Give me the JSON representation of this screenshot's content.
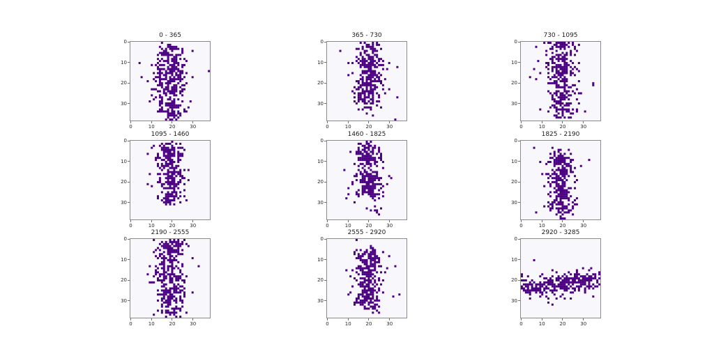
{
  "figure": {
    "background": "#ffffff",
    "axes_background": "#f8f7fb",
    "spine_color": "#8a8a8a",
    "point_color": "#4b0082",
    "tick_color": "#262626",
    "title_color": "#1a1a1a"
  },
  "chart_data": {
    "type": "heatmap",
    "layout": "3x3 grid of binned scatter subplots (matplotlib style)",
    "title": "",
    "xlabel": "",
    "ylabel": "",
    "xlim": [
      -0.5,
      38.5
    ],
    "ylim": [
      38.5,
      -0.5
    ],
    "y_axis_inverted": true,
    "xticks": [
      0,
      10,
      20,
      30
    ],
    "yticks": [
      0,
      10,
      20,
      30
    ],
    "grid": false,
    "legend": false,
    "bin_grid": 39,
    "blob_format": [
      "center_x",
      "center_y",
      "sd_x",
      "sd_y",
      "n_points"
    ],
    "subplots": [
      {
        "title": "0 - 365",
        "seed": 101,
        "band": "vertical, x centered ~19, full height y 0-38",
        "blobs": [
          [
            19.5,
            4,
            3.3,
            2.3,
            55
          ],
          [
            19,
            12,
            3.8,
            2.8,
            85
          ],
          [
            19.5,
            18,
            3.4,
            2.4,
            55
          ],
          [
            19.5,
            24,
            3.4,
            2.4,
            60
          ],
          [
            19.5,
            31,
            3.4,
            2.4,
            55
          ],
          [
            20,
            36.5,
            2.8,
            1.6,
            30
          ],
          [
            19,
            19,
            6.5,
            11,
            40
          ]
        ]
      },
      {
        "title": "365 - 730",
        "seed": 202,
        "band": "vertical, x centered ~19.5, y 0-33",
        "blobs": [
          [
            20,
            2,
            3,
            1.8,
            40
          ],
          [
            19.5,
            9.5,
            3.5,
            2.7,
            85
          ],
          [
            20,
            17,
            3.2,
            2.4,
            70
          ],
          [
            19.5,
            23.5,
            3.2,
            2.4,
            75
          ],
          [
            19.5,
            29,
            3,
            2.1,
            50
          ],
          [
            19.5,
            15,
            6.5,
            8.5,
            35
          ]
        ]
      },
      {
        "title": "730 - 1095",
        "seed": 303,
        "band": "vertical, x centered ~20, y 0-37, sparser near y 20",
        "blobs": [
          [
            20,
            1.5,
            3.2,
            1.4,
            35
          ],
          [
            20,
            7.5,
            3.5,
            2.7,
            75
          ],
          [
            20.5,
            14,
            3.2,
            2.4,
            60
          ],
          [
            19,
            20,
            3,
            2,
            25
          ],
          [
            20,
            27,
            3.5,
            2.9,
            80
          ],
          [
            19.5,
            33.5,
            3.2,
            2.1,
            45
          ],
          [
            19.5,
            18,
            6.5,
            10,
            38
          ]
        ]
      },
      {
        "title": "1095 - 1460",
        "seed": 404,
        "band": "vertical, x centered ~19, y 2-30",
        "blobs": [
          [
            19.5,
            4,
            3,
            2,
            55
          ],
          [
            19,
            9,
            3.2,
            2.2,
            55
          ],
          [
            19.5,
            15,
            3,
            2.2,
            55
          ],
          [
            19.5,
            21,
            3.2,
            2.3,
            60
          ],
          [
            19.5,
            27.5,
            2.8,
            2.1,
            65
          ],
          [
            18.5,
            16,
            6,
            8,
            35
          ]
        ]
      },
      {
        "title": "1460 - 1825",
        "seed": 505,
        "band": "vertical, x centered ~19.5, dense y 2-28, few points y 32-37",
        "blobs": [
          [
            19.5,
            3,
            3,
            1.5,
            45
          ],
          [
            19,
            8,
            3.4,
            2.4,
            80
          ],
          [
            19.5,
            17,
            3,
            2.4,
            65
          ],
          [
            20.5,
            23.5,
            3.2,
            2.4,
            85
          ],
          [
            19.5,
            16,
            6.5,
            8.5,
            40
          ],
          [
            22,
            33.5,
            2.5,
            2,
            10
          ]
        ]
      },
      {
        "title": "1825 - 2190",
        "seed": 606,
        "band": "vertical, x centered ~19.5, y 4-37",
        "blobs": [
          [
            19.5,
            8,
            3.2,
            2.2,
            60
          ],
          [
            19.5,
            14.5,
            3,
            2.4,
            70
          ],
          [
            19,
            20.5,
            2.8,
            2,
            40
          ],
          [
            19.5,
            27,
            3,
            2.4,
            75
          ],
          [
            19.5,
            33,
            3,
            2.1,
            50
          ],
          [
            19,
            20,
            6,
            10,
            38
          ]
        ]
      },
      {
        "title": "2190 - 2555",
        "seed": 707,
        "band": "vertical, x centered ~19.5, full height y 0-38",
        "blobs": [
          [
            20,
            2.5,
            3,
            2.1,
            65
          ],
          [
            19.5,
            8.5,
            3,
            2.4,
            60
          ],
          [
            19,
            14.5,
            3,
            2,
            35
          ],
          [
            19.5,
            19,
            3.5,
            1.7,
            55
          ],
          [
            19,
            25,
            3.2,
            2.4,
            70
          ],
          [
            19.5,
            31,
            3,
            2.1,
            50
          ],
          [
            20,
            36.5,
            2.7,
            1.4,
            25
          ],
          [
            18.5,
            18,
            6.5,
            11,
            42
          ]
        ]
      },
      {
        "title": "2555 - 2920",
        "seed": 808,
        "band": "vertical, x centered ~20, y 6-35",
        "blobs": [
          [
            20.5,
            8,
            3.2,
            2,
            70
          ],
          [
            19.5,
            13.5,
            3,
            2.2,
            55
          ],
          [
            20,
            20,
            3.2,
            2.4,
            60
          ],
          [
            20.5,
            26.5,
            3,
            2.4,
            70
          ],
          [
            20,
            31.5,
            3,
            1.9,
            45
          ],
          [
            18.5,
            20,
            6,
            8.5,
            35
          ]
        ]
      },
      {
        "title": "2920 - 3285",
        "seed": 909,
        "band": "horizontal, y centered ~22 (rising slightly to the right), full width x 0-38",
        "blobs": [
          [
            10,
            23,
            6,
            2.4,
            80
          ],
          [
            20,
            22,
            5,
            2.4,
            90
          ],
          [
            29,
            20.5,
            5,
            2.4,
            70
          ],
          [
            35,
            19,
            3,
            2.4,
            30
          ],
          [
            2.5,
            23.5,
            2.5,
            2.4,
            30
          ],
          [
            19,
            22,
            11,
            4.2,
            45
          ]
        ]
      }
    ]
  }
}
